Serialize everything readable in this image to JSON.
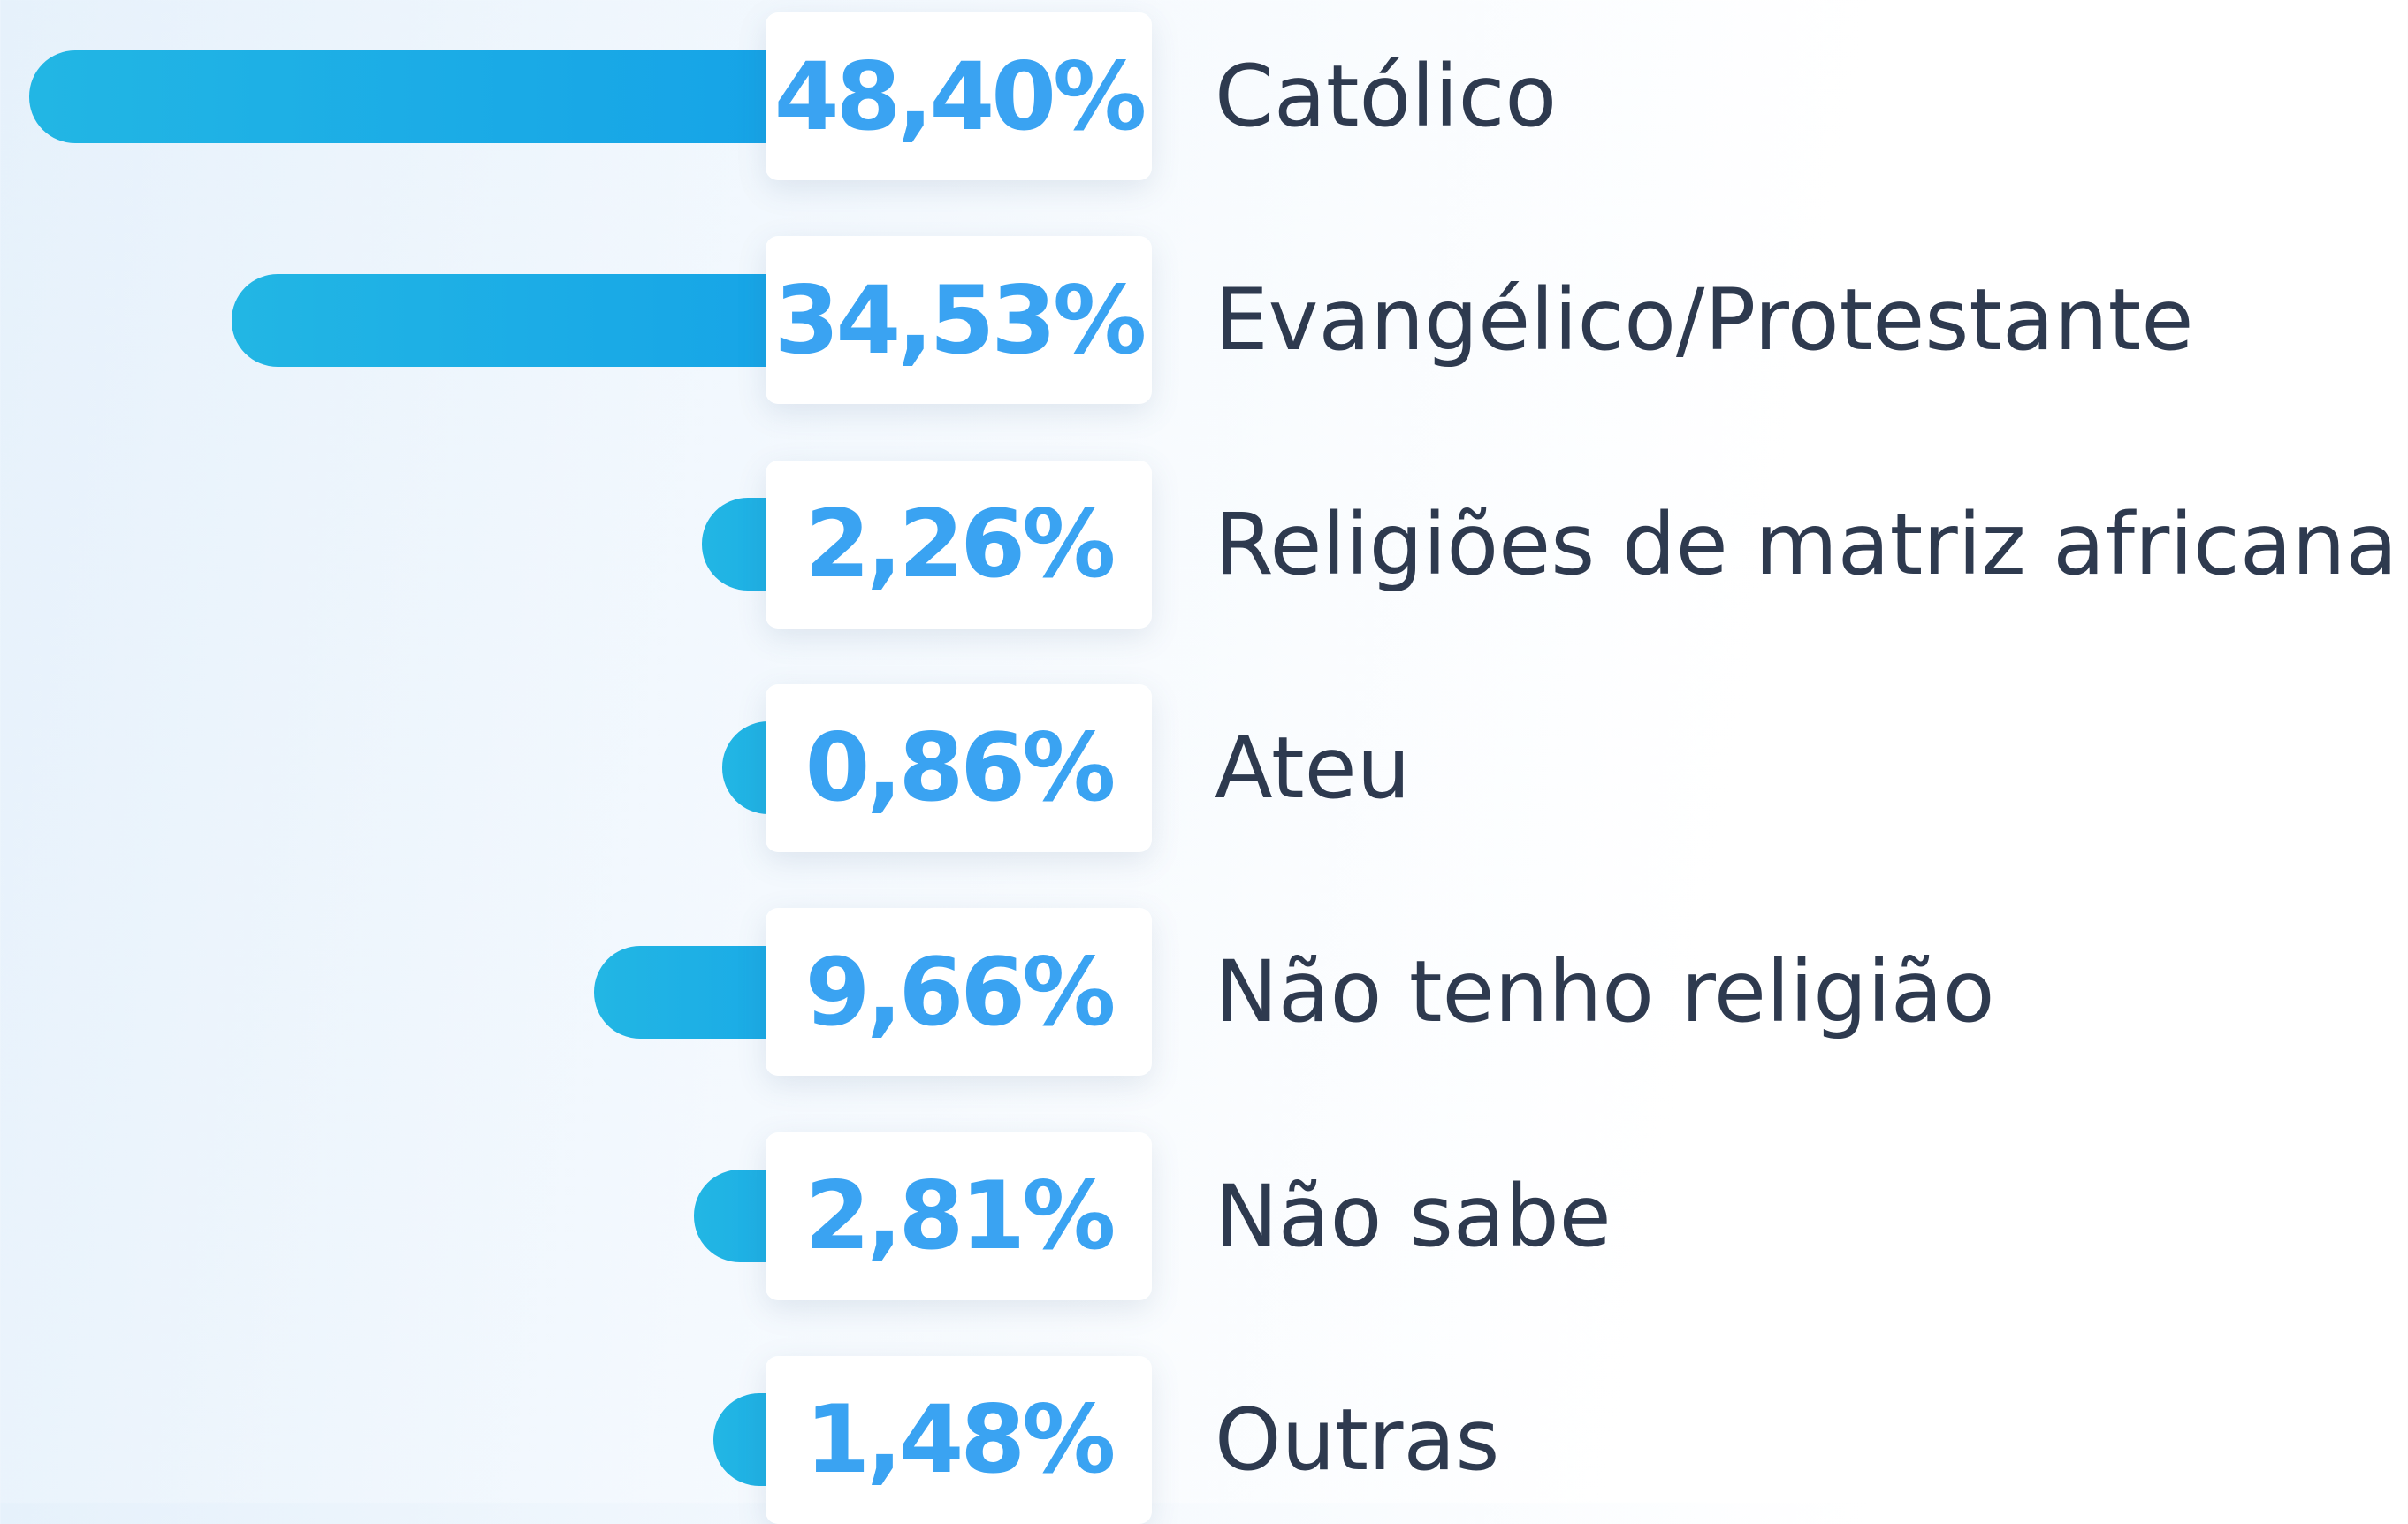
{
  "chart_data": {
    "type": "bar",
    "orientation": "horizontal",
    "categories": [
      "Católico",
      "Evangélico/Protestante",
      "Religiões de matriz africana",
      "Ateu",
      "Não tenho religião",
      "Não sabe",
      "Outras"
    ],
    "values": [
      48.4,
      34.53,
      2.26,
      0.86,
      9.66,
      2.81,
      1.48
    ],
    "value_labels": [
      "48,40%",
      "34,53%",
      "2,26%",
      "0,86%",
      "9,66%",
      "2,81%",
      "1,48%"
    ],
    "color": "#139fe8"
  }
}
